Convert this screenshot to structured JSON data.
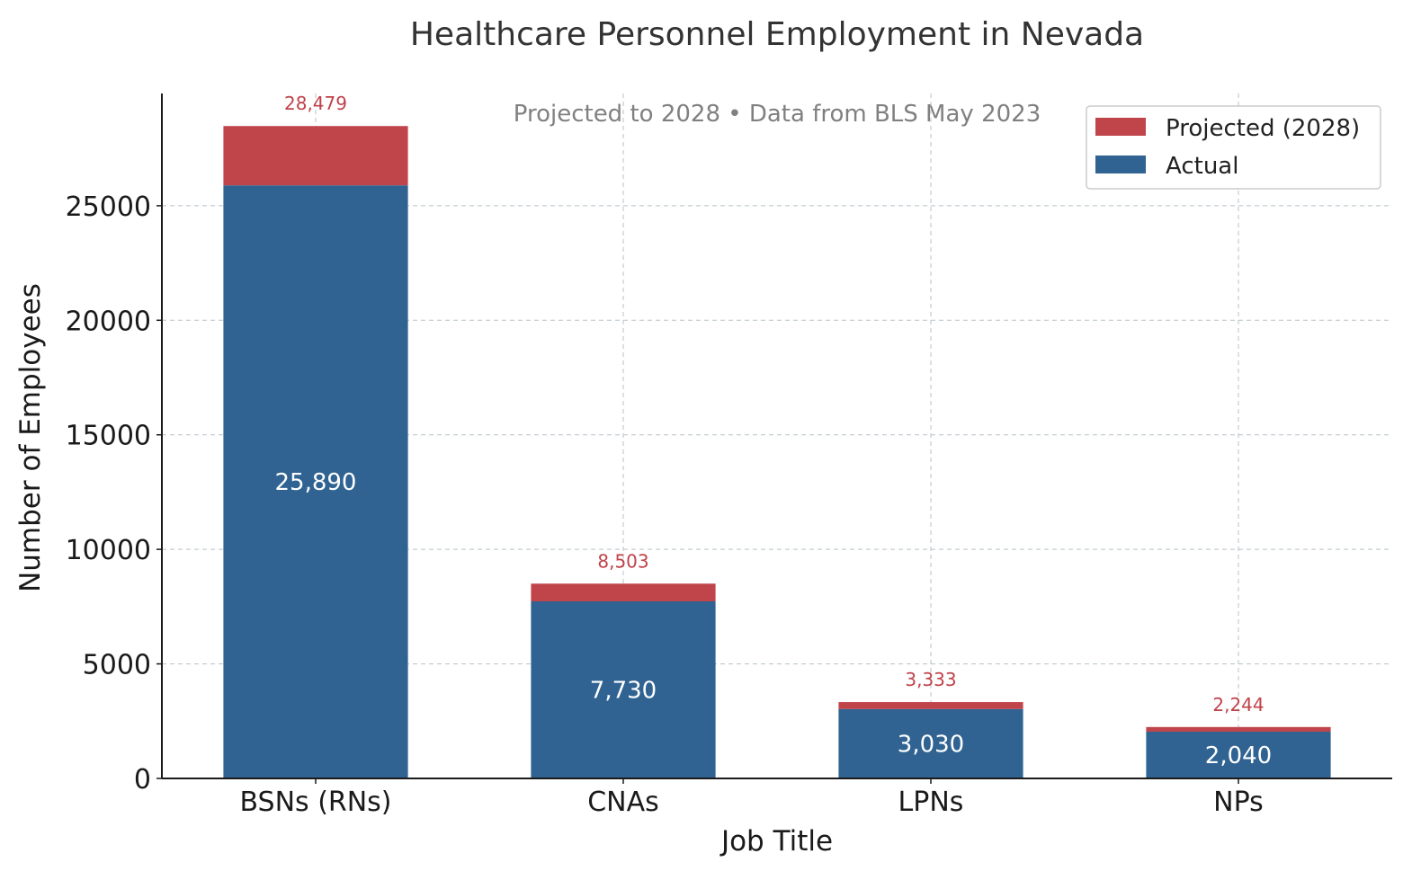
{
  "chart_data": {
    "type": "bar",
    "stacked": true,
    "title": "Healthcare Personnel Employment in Nevada",
    "subtitle": "Projected to 2028 • Data from BLS May 2023",
    "xlabel": "Job Title",
    "ylabel": "Number of Employees",
    "categories": [
      "BSNs (RNs)",
      "CNAs",
      "LPNs",
      "NPs"
    ],
    "series": [
      {
        "name": "Actual",
        "values": [
          25890,
          7730,
          3030,
          2040
        ],
        "labels": [
          "25,890",
          "7,730",
          "3,030",
          "2,040"
        ]
      },
      {
        "name": "Projected (2028)",
        "totals": [
          28479,
          8503,
          3333,
          2244
        ],
        "labels": [
          "28,479",
          "8,503",
          "3,333",
          "2,244"
        ]
      }
    ],
    "yticks": [
      "0",
      "5000",
      "10000",
      "15000",
      "20000",
      "25000"
    ],
    "ylim": [
      0,
      29900
    ],
    "grid": true,
    "legend": {
      "placement": "top-right",
      "entries": [
        "Projected (2028)",
        "Actual"
      ]
    },
    "colors": {
      "actual": "#306392",
      "projected": "#c0454b"
    }
  }
}
